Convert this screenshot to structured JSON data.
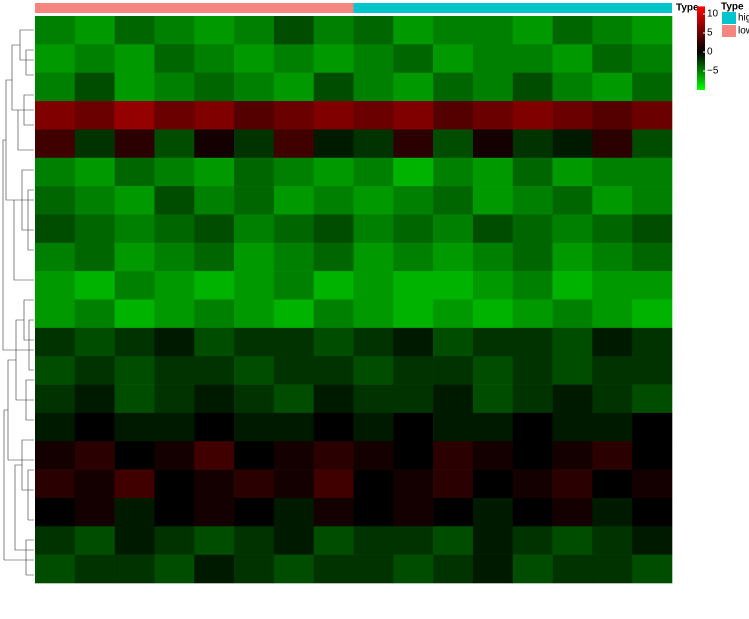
{
  "chart_data": {
    "type": "heatmap",
    "annotation_label": "Type",
    "legend_title": "Type",
    "levels": [
      {
        "name": "hig",
        "color": "#00c5cd",
        "count": 8
      },
      {
        "name": "low",
        "color": "#f4857f",
        "count": 8
      }
    ],
    "colors": [
      "#00ff00",
      "#000000",
      "#ff0000"
    ],
    "ylim": [
      -10,
      12
    ],
    "yticks": [
      10,
      5,
      0,
      {
        "value": -5,
        "label": "−5"
      }
    ],
    "values": [
      [
        -5,
        -6,
        -4,
        -5,
        -6,
        -5,
        -3,
        -5,
        -4,
        -6,
        -5,
        -5,
        -6,
        -4,
        -5,
        -6
      ],
      [
        -6,
        -5,
        -6,
        -4,
        -5,
        -6,
        -5,
        -6,
        -5,
        -4,
        -6,
        -5,
        -5,
        -6,
        -4,
        -5
      ],
      [
        -5,
        -3,
        -6,
        -5,
        -4,
        -5,
        -6,
        -3,
        -5,
        -6,
        -4,
        -5,
        -3,
        -5,
        -6,
        -4
      ],
      [
        6,
        5,
        7,
        5,
        6,
        4,
        5,
        6,
        5,
        6,
        4,
        5,
        6,
        5,
        4,
        5
      ],
      [
        3,
        -2,
        2,
        -3,
        1,
        -2,
        3,
        -1,
        -2,
        2,
        -3,
        1,
        -2,
        -1,
        2,
        -3
      ],
      [
        -5,
        -6,
        -4,
        -5,
        -6,
        -4,
        -5,
        -6,
        -5,
        -7,
        -5,
        -6,
        -4,
        -6,
        -5,
        -5
      ],
      [
        -4,
        -5,
        -6,
        -3,
        -5,
        -4,
        -6,
        -5,
        -6,
        -5,
        -4,
        -6,
        -5,
        -4,
        -6,
        -5
      ],
      [
        -3,
        -4,
        -5,
        -4,
        -3,
        -5,
        -4,
        -3,
        -5,
        -4,
        -5,
        -3,
        -4,
        -5,
        -4,
        -3
      ],
      [
        -5,
        -4,
        -6,
        -5,
        -4,
        -6,
        -5,
        -4,
        -6,
        -5,
        -6,
        -5,
        -4,
        -6,
        -5,
        -4
      ],
      [
        -6,
        -7,
        -5,
        -6,
        -7,
        -6,
        -5,
        -7,
        -6,
        -7,
        -7,
        -6,
        -5,
        -7,
        -6,
        -6
      ],
      [
        -6,
        -5,
        -7,
        -6,
        -5,
        -6,
        -7,
        -5,
        -6,
        -7,
        -6,
        -7,
        -6,
        -5,
        -6,
        -7
      ],
      [
        -2,
        -3,
        -2,
        -1,
        -3,
        -2,
        -2,
        -3,
        -2,
        -1,
        -3,
        -2,
        -2,
        -3,
        -1,
        -2
      ],
      [
        -3,
        -2,
        -3,
        -2,
        -2,
        -3,
        -2,
        -2,
        -3,
        -2,
        -2,
        -3,
        -2,
        -3,
        -2,
        -2
      ],
      [
        -2,
        -1,
        -3,
        -2,
        -1,
        -2,
        -3,
        -1,
        -2,
        -2,
        -1,
        -3,
        -2,
        -1,
        -2,
        -3
      ],
      [
        -1,
        0,
        -1,
        -1,
        0,
        -1,
        -1,
        0,
        -1,
        0,
        -1,
        -1,
        0,
        -1,
        -1,
        0
      ],
      [
        1,
        2,
        0,
        1,
        3,
        0,
        1,
        2,
        1,
        0,
        2,
        1,
        0,
        1,
        2,
        0
      ],
      [
        2,
        1,
        3,
        0,
        1,
        2,
        1,
        3,
        0,
        1,
        2,
        0,
        1,
        2,
        0,
        1
      ],
      [
        0,
        1,
        -1,
        0,
        1,
        0,
        -1,
        1,
        0,
        1,
        0,
        -1,
        0,
        1,
        -1,
        0
      ],
      [
        -2,
        -3,
        -1,
        -2,
        -3,
        -2,
        -1,
        -3,
        -2,
        -2,
        -3,
        -1,
        -2,
        -3,
        -2,
        -1
      ],
      [
        -3,
        -2,
        -2,
        -3,
        -1,
        -2,
        -3,
        -2,
        -2,
        -3,
        -2,
        -1,
        -3,
        -2,
        -2,
        -3
      ]
    ]
  }
}
